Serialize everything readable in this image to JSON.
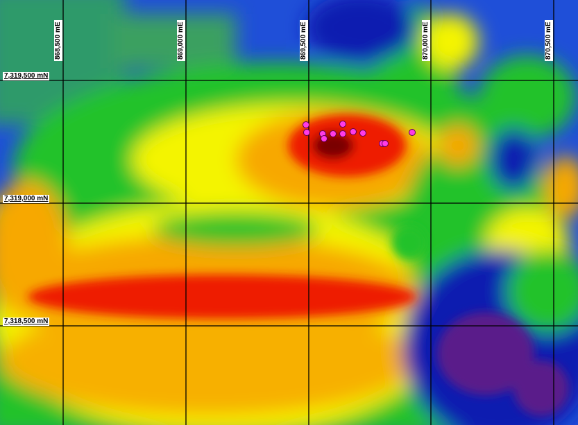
{
  "map": {
    "easting_labels": [
      "868,500 mE",
      "869,000 mE",
      "869,500 mE",
      "870,000 mE",
      "870,500 mE"
    ],
    "northing_labels": [
      "7,319,500 mN",
      "7,319,000 mN",
      "7,318,500 mN"
    ],
    "colors": {
      "background_blue": "#1f3fd0",
      "deep_blue": "#0a1fb0",
      "purple": "#5a1a8a",
      "green": "#22c22a",
      "teal": "#2f9a6a",
      "yellow": "#f4f400",
      "orange": "#f7a800",
      "red": "#ee1a00",
      "dark_red": "#7a0000",
      "sample_point": "#ff3ce6",
      "grid_line": "#000000"
    },
    "sample_points_count": 12
  }
}
